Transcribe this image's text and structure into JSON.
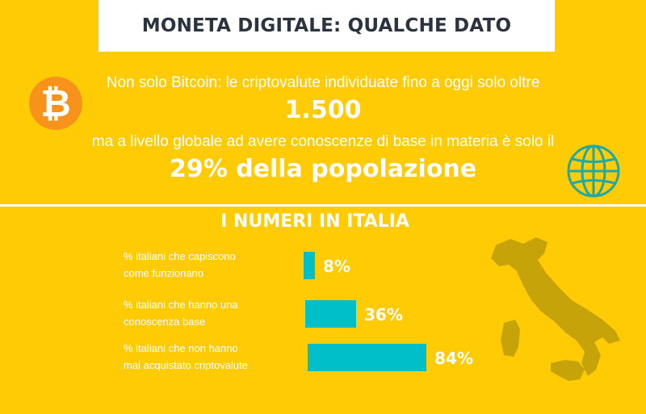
{
  "header": {
    "title": "MONETA DIGITALE: QUALCHE DATO"
  },
  "intro": {
    "line1": "Non solo Bitcoin: le criptovalute individuate fino a oggi solo oltre",
    "count": "1.500",
    "line2": "ma a livello globale ad avere conoscenze di base in materia è solo il",
    "percent_text": "29% della popolazione",
    "bitcoin_glyph": "₿"
  },
  "icons": {
    "bitcoin": "bitcoin-icon",
    "globe": "globe-icon",
    "map": "italy-map-icon"
  },
  "colors": {
    "background": "#FFCB05",
    "bar": "#00BFC8",
    "bitcoin": "#F7931A",
    "map": "#C7A30A"
  },
  "chart_data": {
    "type": "bar",
    "orientation": "horizontal",
    "title": "I NUMERI IN ITALIA",
    "categories": [
      [
        "% italiani che capiscono",
        "come funzionano"
      ],
      [
        "% italiani che hanno una",
        "conoscenza base"
      ],
      [
        "% italiani che non hanno",
        "mai acquistato criptovalute"
      ]
    ],
    "values": [
      8,
      36,
      84
    ],
    "value_labels": [
      "8%",
      "36%",
      "84%"
    ],
    "xlim": [
      0,
      100
    ],
    "grid": false
  }
}
